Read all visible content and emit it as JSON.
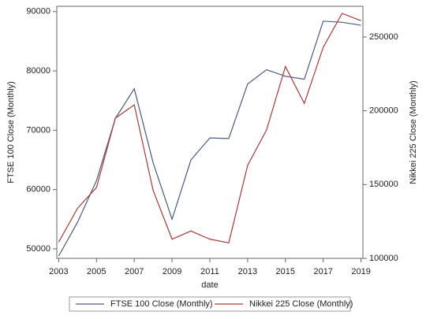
{
  "chart_data": {
    "type": "line",
    "x_label": "date",
    "y_label": "FTSE 100 Close (Monthly)",
    "y2_label": "Nikkei 225 Close (Monthly)",
    "x": [
      2003,
      2004,
      2005,
      2006,
      2007,
      2008,
      2009,
      2010,
      2011,
      2012,
      2013,
      2014,
      2015,
      2016,
      2017,
      2018,
      2019
    ],
    "xlim": [
      2002.9,
      2019.1
    ],
    "xticks": [
      2003,
      2005,
      2007,
      2009,
      2011,
      2013,
      2015,
      2017,
      2019
    ],
    "ylim": [
      48400,
      90900
    ],
    "yticks": [
      50000,
      60000,
      70000,
      80000,
      90000
    ],
    "y2lim": [
      100000,
      270800
    ],
    "y2ticks": [
      100000,
      150000,
      200000,
      250000
    ],
    "grid": false,
    "legend": "bottom",
    "series": [
      {
        "name": "FTSE 100 Close (Monthly)",
        "color": "#4a5b7e",
        "values": [
          48800,
          54500,
          61500,
          72000,
          77000,
          64500,
          55000,
          65000,
          68700,
          68600,
          77800,
          80200,
          79100,
          78600,
          88400,
          88200,
          87700
        ]
      },
      {
        "name": "Nikkei 225 Close (Monthly)",
        "color": "#a83a3a",
        "axis": "y2",
        "values": [
          111000,
          134000,
          148000,
          195000,
          204000,
          146000,
          113000,
          118500,
          113000,
          110500,
          163000,
          187000,
          230000,
          205000,
          243000,
          266000,
          261000
        ]
      }
    ]
  }
}
